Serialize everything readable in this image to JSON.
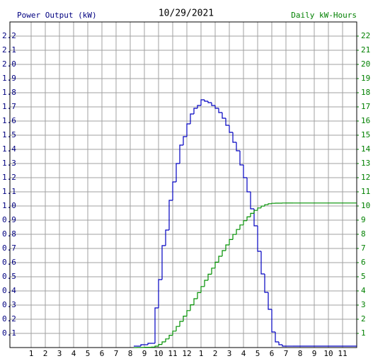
{
  "chart_data": {
    "type": "step-line",
    "title": "10/29/2021",
    "y_label": "Power Output (kW)",
    "y2_label": "Daily kW-Hours",
    "xlim": [
      -0.5,
      24
    ],
    "xticks": [
      1,
      2,
      3,
      4,
      5,
      6,
      7,
      8,
      9,
      10,
      11,
      12,
      {
        "value": 13,
        "label": "1"
      },
      {
        "value": 14,
        "label": "2"
      },
      {
        "value": 15,
        "label": "3"
      },
      {
        "value": 16,
        "label": "4"
      },
      {
        "value": 17,
        "label": "5"
      },
      {
        "value": 18,
        "label": "6"
      },
      {
        "value": 19,
        "label": "7"
      },
      {
        "value": 20,
        "label": "8"
      },
      {
        "value": 21,
        "label": "9"
      },
      {
        "value": 22,
        "label": "10"
      },
      {
        "value": 23,
        "label": "11"
      }
    ],
    "ylim": [
      0,
      2.3
    ],
    "yticks": [
      0.1,
      0.2,
      0.3,
      0.4,
      0.5,
      0.6,
      0.7,
      0.8,
      0.9,
      {
        "value": 1,
        "label": "1.0"
      },
      1.1,
      1.2,
      1.3,
      1.4,
      1.5,
      1.6,
      1.7,
      1.8,
      1.9,
      {
        "value": 2,
        "label": "2.0"
      },
      2.1,
      2.2
    ],
    "y2lim": [
      0,
      23
    ],
    "y2ticks": [
      1,
      2,
      3,
      4,
      5,
      6,
      7,
      8,
      9,
      10,
      11,
      12,
      13,
      14,
      15,
      16,
      17,
      18,
      19,
      20,
      21,
      22
    ],
    "grid": true,
    "x": [
      8.25,
      8.5,
      8.75,
      9,
      9.25,
      9.5,
      9.75,
      10,
      10.25,
      10.5,
      10.75,
      11,
      11.25,
      11.5,
      11.75,
      12,
      12.25,
      12.5,
      12.75,
      13,
      13.25,
      13.5,
      13.75,
      14,
      14.25,
      14.5,
      14.75,
      15,
      15.25,
      15.5,
      15.75,
      16,
      16.25,
      16.5,
      16.75,
      17,
      17.25,
      17.5,
      17.75,
      18,
      18.25,
      18.5,
      18.75,
      19,
      19.25,
      19.5,
      24
    ],
    "series": [
      {
        "color": "#0000c0",
        "values": [
          0.01,
          0.01,
          0.02,
          0.02,
          0.03,
          0.03,
          0.28,
          0.48,
          0.72,
          0.83,
          1.04,
          1.17,
          1.3,
          1.43,
          1.49,
          1.58,
          1.65,
          1.69,
          1.71,
          1.75,
          1.74,
          1.73,
          1.71,
          1.69,
          1.66,
          1.62,
          1.57,
          1.52,
          1.45,
          1.39,
          1.29,
          1.2,
          1.1,
          0.98,
          0.86,
          0.68,
          0.52,
          0.39,
          0.27,
          0.11,
          0.04,
          0.02,
          0.01,
          0.01,
          0.01,
          0.01,
          null
        ]
      },
      {
        "color": "#009000",
        "axis": "y2",
        "values": [
          0,
          0.01,
          0.01,
          0.02,
          0.02,
          0.03,
          0.1,
          0.22,
          0.4,
          0.61,
          0.87,
          1.16,
          1.49,
          1.85,
          2.22,
          2.61,
          3.02,
          3.45,
          3.88,
          4.31,
          4.75,
          5.18,
          5.61,
          6.03,
          6.45,
          6.85,
          7.25,
          7.63,
          7.99,
          8.34,
          8.66,
          8.96,
          9.23,
          9.48,
          9.69,
          9.86,
          9.99,
          10.09,
          10.16,
          10.19,
          10.2,
          10.2,
          10.21,
          10.21,
          10.21,
          10.21,
          10.21
        ]
      }
    ]
  }
}
